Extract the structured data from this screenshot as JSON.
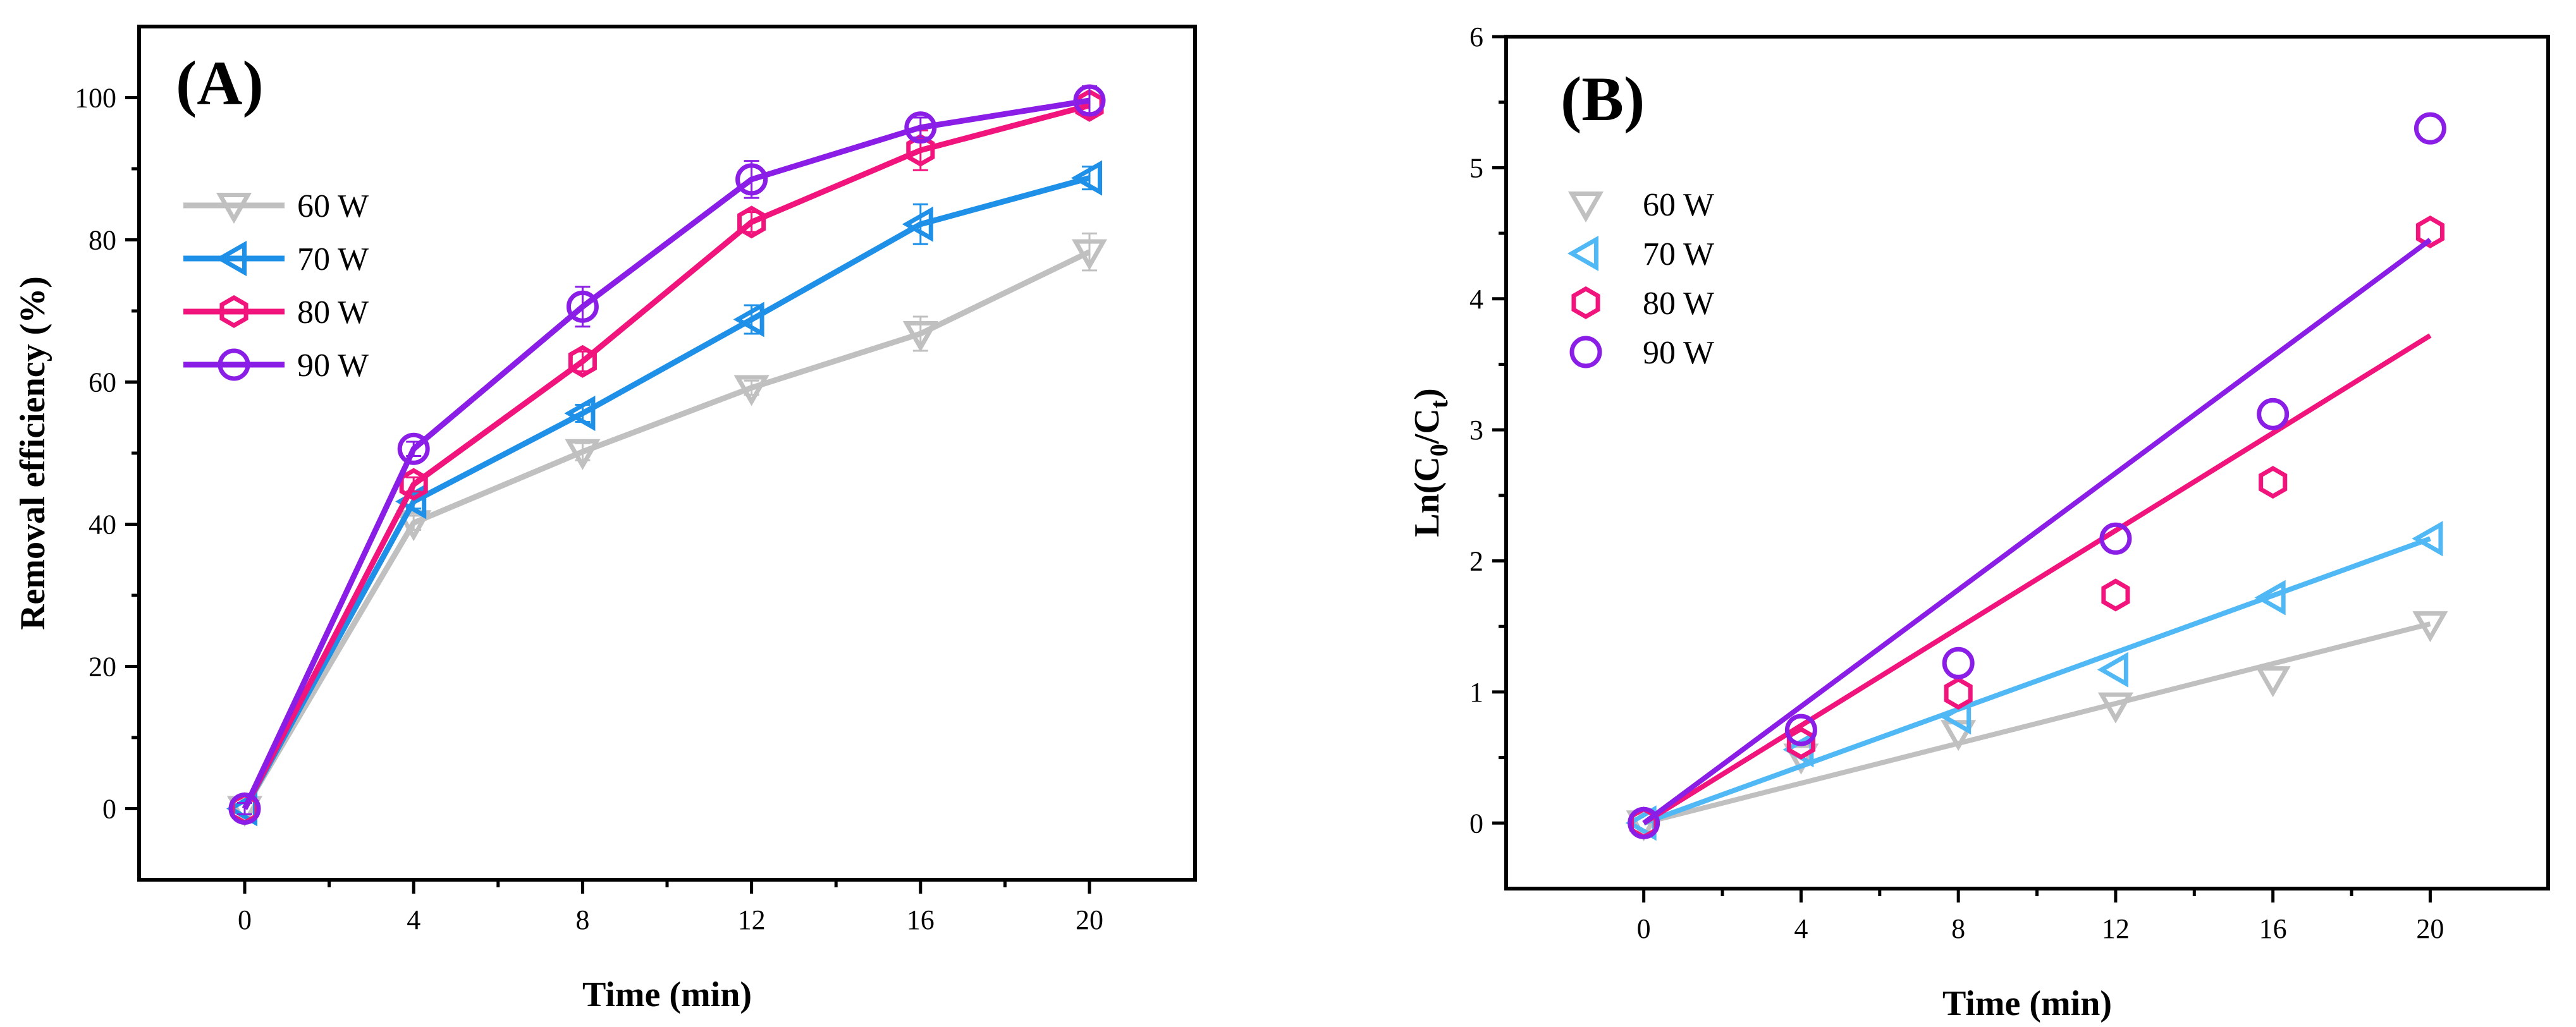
{
  "chart_data": [
    {
      "type": "line",
      "panel_label": "(A)",
      "xlabel": "Time (min)",
      "ylabel": "Removal efficiency (%)",
      "xlim": [
        -2.5,
        22.5
      ],
      "ylim": [
        -10,
        110
      ],
      "xticks": [
        "0",
        "4",
        "8",
        "12",
        "16",
        "20"
      ],
      "yticks": [
        "0",
        "20",
        "40",
        "60",
        "80",
        "100"
      ],
      "x": [
        0,
        4,
        8,
        12,
        16,
        20
      ],
      "legend_position": "top-left",
      "series": [
        {
          "name": "60 W",
          "color": "#c0c0c0",
          "marker": "triangle-down",
          "values": [
            0,
            40.2,
            50.2,
            59.2,
            66.8,
            78.3
          ],
          "errors": [
            0.8,
            1.0,
            1.2,
            1.0,
            2.4,
            2.6
          ]
        },
        {
          "name": "70 W",
          "color": "#1e90e8",
          "marker": "triangle-left",
          "values": [
            0,
            43.2,
            55.6,
            68.8,
            82.2,
            88.7
          ],
          "errors": [
            0.8,
            1.0,
            1.2,
            2.0,
            2.8,
            1.6
          ]
        },
        {
          "name": "80 W",
          "color": "#f0147c",
          "marker": "hexagon",
          "values": [
            0,
            45.6,
            62.9,
            82.5,
            92.6,
            98.9
          ],
          "errors": [
            0.8,
            1.0,
            1.4,
            1.4,
            2.8,
            1.6
          ]
        },
        {
          "name": "90 W",
          "color": "#8a1ee6",
          "marker": "circle",
          "values": [
            0,
            50.6,
            70.6,
            88.5,
            95.8,
            99.6
          ],
          "errors": [
            0.8,
            1.0,
            2.8,
            2.6,
            1.4,
            2.0
          ]
        }
      ]
    },
    {
      "type": "scatter",
      "panel_label": "(B)",
      "xlabel": "Time (min)",
      "ylabel_main": "Ln(C",
      "ylabel_sub1": "0",
      "ylabel_mid": "/C",
      "ylabel_sub2": "t",
      "ylabel_end": ")",
      "xlim": [
        -3.5,
        23
      ],
      "ylim": [
        -0.5,
        6
      ],
      "xticks": [
        "0",
        "4",
        "8",
        "12",
        "16",
        "20"
      ],
      "yticks": [
        "0",
        "1",
        "2",
        "3",
        "4",
        "5",
        "6"
      ],
      "x": [
        0,
        4,
        8,
        12,
        16,
        20
      ],
      "legend_position": "top-left",
      "series": [
        {
          "name": "60 W",
          "color": "#c0c0c0",
          "marker": "triangle-down",
          "values": [
            0,
            0.51,
            0.69,
            0.9,
            1.1,
            1.52
          ],
          "fit": [
            0,
            1.52
          ]
        },
        {
          "name": "70 W",
          "color": "#4fb8f5",
          "marker": "triangle-left",
          "values": [
            0,
            0.56,
            0.81,
            1.17,
            1.72,
            2.17
          ],
          "fit": [
            0,
            2.17
          ]
        },
        {
          "name": "80 W",
          "color": "#f0147c",
          "marker": "hexagon",
          "values": [
            0,
            0.61,
            0.99,
            1.74,
            2.6,
            4.51
          ],
          "fit": [
            0,
            3.72
          ]
        },
        {
          "name": "90 W",
          "color": "#8a1ee6",
          "marker": "circle",
          "values": [
            0,
            0.71,
            1.22,
            2.17,
            3.12,
            5.3
          ],
          "fit": [
            0,
            4.45
          ]
        }
      ]
    }
  ]
}
